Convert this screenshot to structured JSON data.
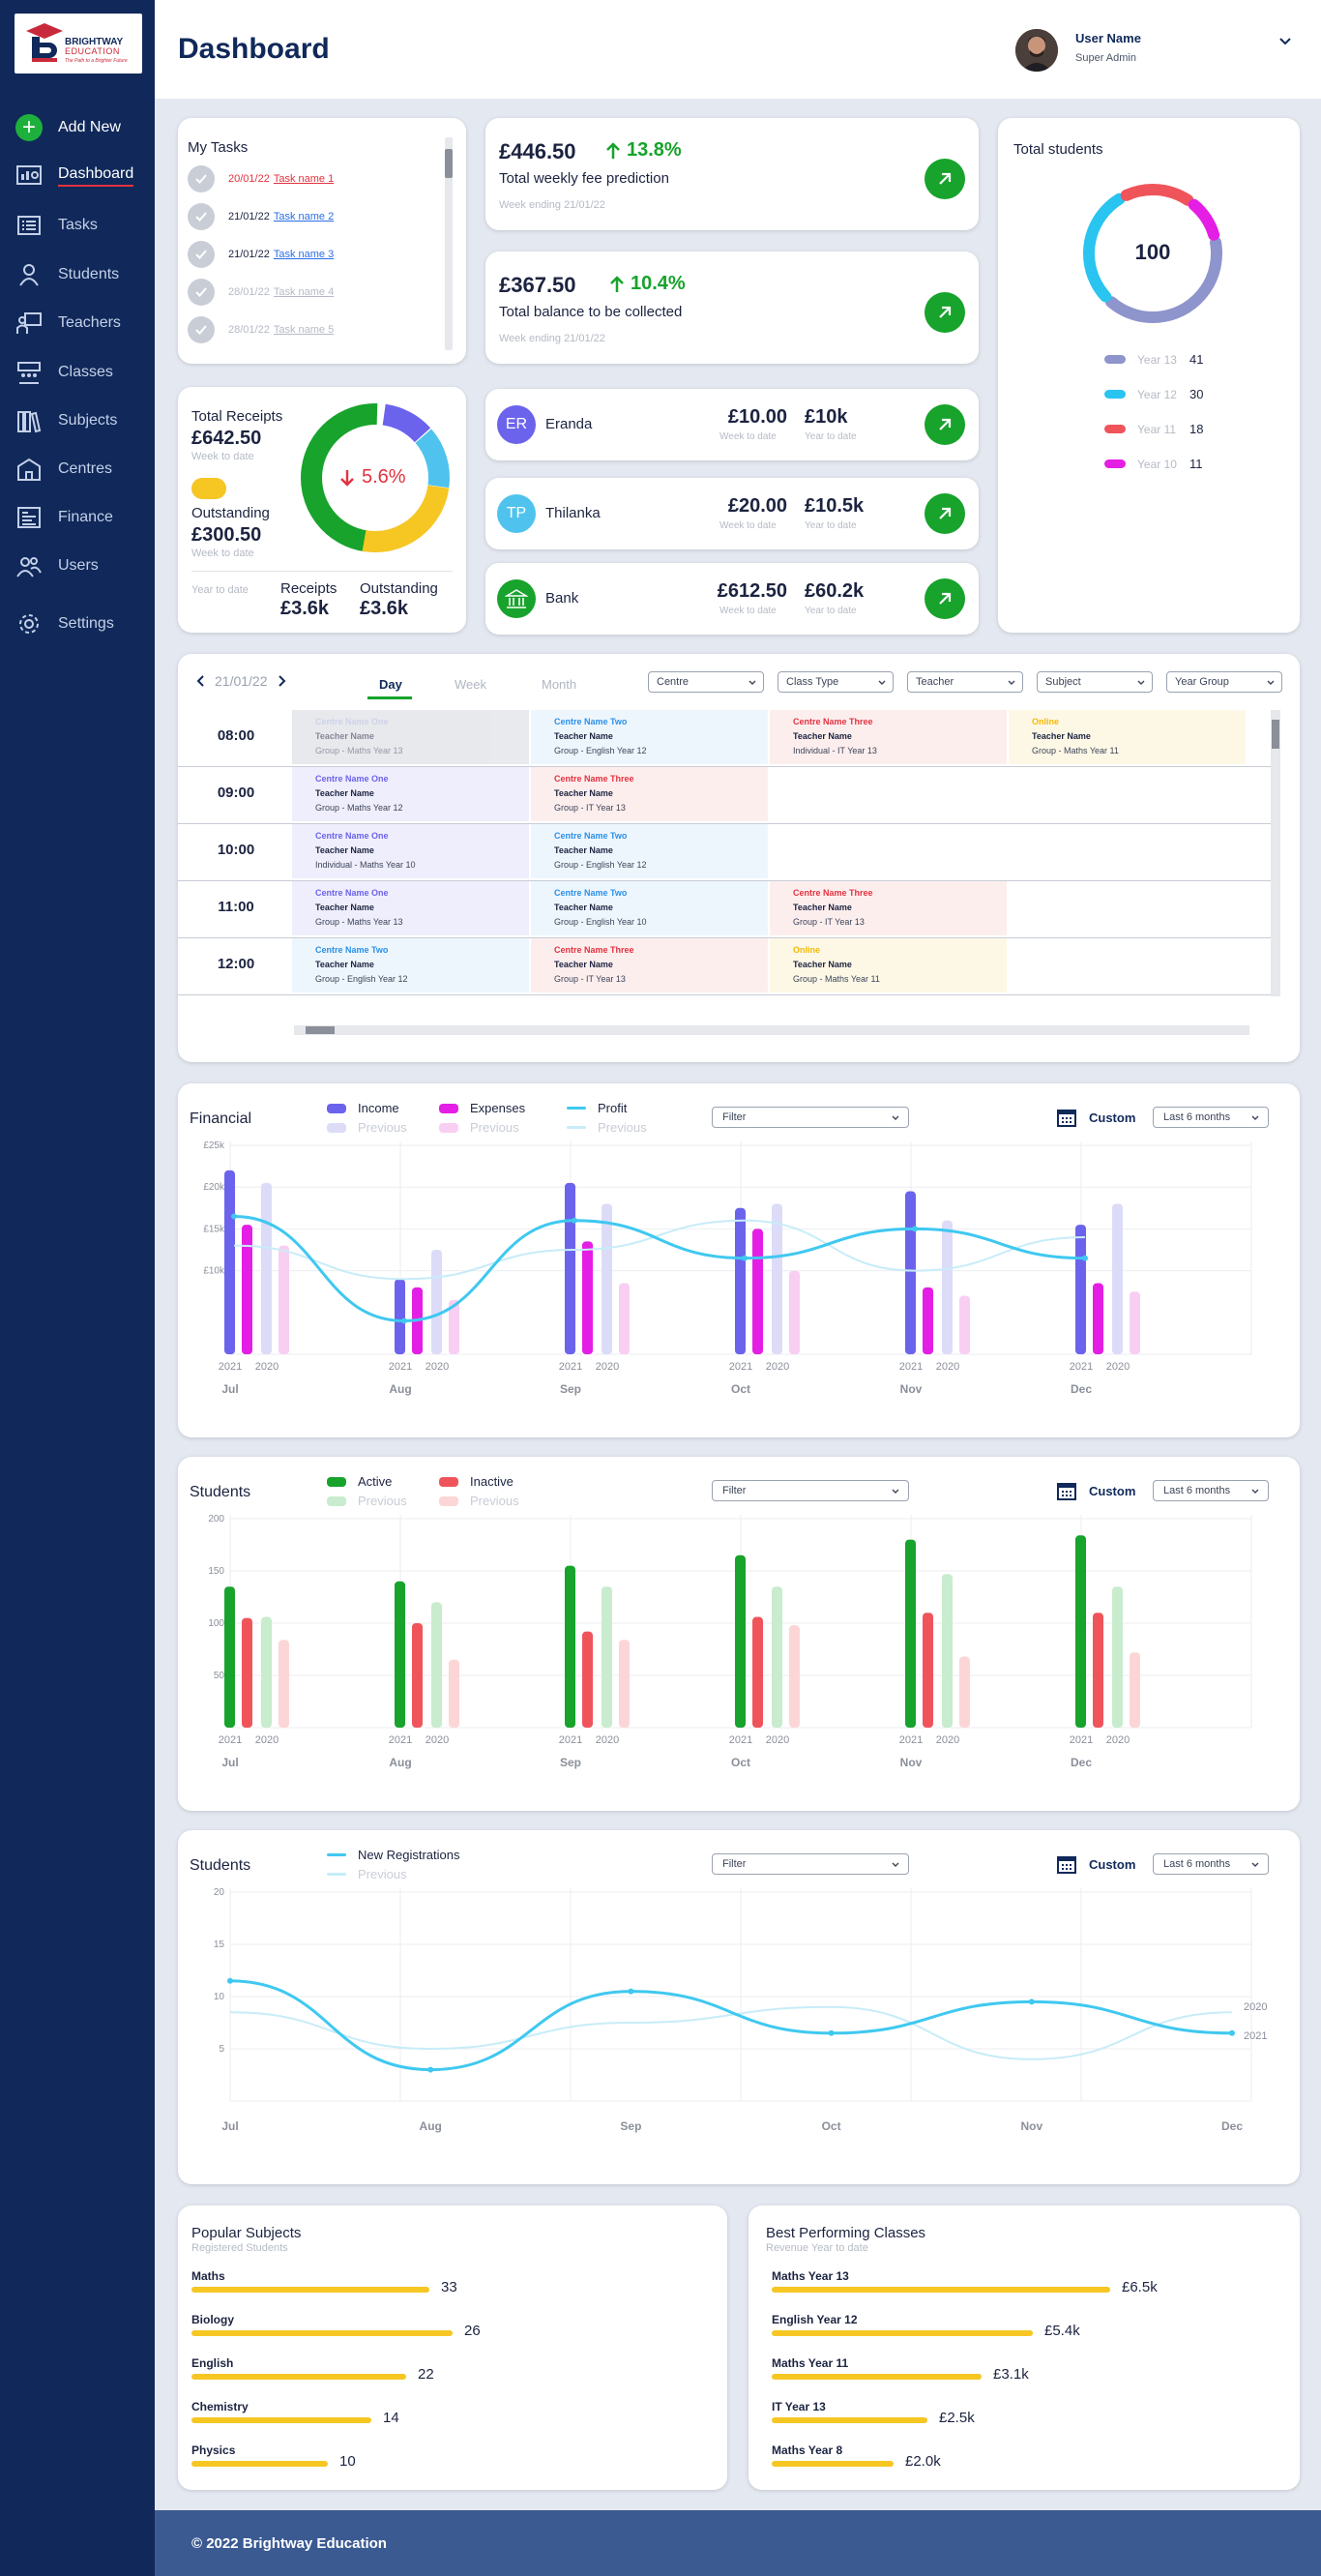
{
  "brand": {
    "name": "BRIGHTWAY",
    "sub": "EDUCATION",
    "tagline": "The Path to a Brighter Future",
    "color": "#10295a",
    "accent": "#c92a3b"
  },
  "header": {
    "title": "Dashboard",
    "user_name": "User Name",
    "user_role": "Super Admin"
  },
  "sidebar": {
    "items": [
      {
        "label": "Add New",
        "icon": "plus-icon"
      },
      {
        "label": "Dashboard",
        "icon": "dashboard-icon"
      },
      {
        "label": "Tasks",
        "icon": "list-icon"
      },
      {
        "label": "Students",
        "icon": "student-icon"
      },
      {
        "label": "Teachers",
        "icon": "teacher-icon"
      },
      {
        "label": "Classes",
        "icon": "classroom-icon"
      },
      {
        "label": "Subjects",
        "icon": "books-icon"
      },
      {
        "label": "Centres",
        "icon": "building-icon"
      },
      {
        "label": "Finance",
        "icon": "finance-icon"
      },
      {
        "label": "Users",
        "icon": "users-icon"
      },
      {
        "label": "Settings",
        "icon": "gear-icon"
      }
    ]
  },
  "tasks": {
    "title": "My Tasks",
    "items": [
      {
        "date": "20/01/22",
        "name": "Task name 1",
        "state": "overdue"
      },
      {
        "date": "21/01/22",
        "name": "Task name 2",
        "state": "due"
      },
      {
        "date": "21/01/22",
        "name": "Task name 3",
        "state": "due"
      },
      {
        "date": "28/01/22",
        "name": "Task name 4",
        "state": "future"
      },
      {
        "date": "28/01/22",
        "name": "Task name 5",
        "state": "future"
      }
    ]
  },
  "fee_prediction": {
    "amount": "£446.50",
    "pct": "13.8%",
    "label": "Total weekly fee prediction",
    "note": "Week ending 21/01/22"
  },
  "balance": {
    "amount": "£367.50",
    "pct": "10.4%",
    "label": "Total balance to be collected",
    "note": "Week ending 21/01/22"
  },
  "receipts": {
    "title": "Total Receipts",
    "amount": "£642.50",
    "week_note": "Week to date",
    "out_title": "Outstanding",
    "out_amount": "£300.50",
    "out_note": "Week to date",
    "pct": "5.6%",
    "ytd_label": "Year to date",
    "r_label": "Receipts",
    "r_value": "£3.6k",
    "o_label": "Outstanding",
    "o_value": "£3.6k"
  },
  "people": [
    {
      "initials": "ER",
      "name": "Eranda",
      "week": "£10.00",
      "year": "£10k",
      "color": "#6c63ec"
    },
    {
      "initials": "TP",
      "name": "Thilanka",
      "week": "£20.00",
      "year": "£10.5k",
      "color": "#4fc3ee"
    },
    {
      "initials": "",
      "name": "Bank",
      "week": "£612.50",
      "year": "£60.2k",
      "color": "#17a32c"
    }
  ],
  "people_labels": {
    "week": "Week to date",
    "year": "Year to date"
  },
  "total_students": {
    "title": "Total students",
    "total": "100",
    "legend": [
      {
        "name": "Year 13",
        "value": "41",
        "color": "#8e94cc"
      },
      {
        "name": "Year 12",
        "value": "30",
        "color": "#29c4f0"
      },
      {
        "name": "Year 11",
        "value": "18",
        "color": "#f0545b"
      },
      {
        "name": "Year 10",
        "value": "11",
        "color": "#e41ee4"
      }
    ]
  },
  "timetable": {
    "date": "21/01/22",
    "tabs": [
      "Day",
      "Week",
      "Month"
    ],
    "filters": [
      "Centre",
      "Class Type",
      "Teacher",
      "Subject",
      "Year Group"
    ],
    "times": [
      "08:00",
      "09:00",
      "10:00",
      "11:00",
      "12:00"
    ],
    "slots": [
      [
        {
          "c": "Centre Name One",
          "t": "Teacher Name",
          "g": "Group - Maths Year 13",
          "k": "past"
        },
        {
          "c": "Centre Name Two",
          "t": "Teacher Name",
          "g": "Group - English Year 12",
          "k": "two"
        },
        {
          "c": "Centre Name Three",
          "t": "Teacher Name",
          "g": "Individual - IT Year 13",
          "k": "three"
        },
        {
          "c": "Online",
          "t": "Teacher Name",
          "g": "Group - Maths Year 11",
          "k": "online"
        }
      ],
      [
        {
          "c": "Centre Name One",
          "t": "Teacher Name",
          "g": "Group - Maths Year 12",
          "k": "one"
        },
        {
          "c": "Centre Name Three",
          "t": "Teacher Name",
          "g": "Group - IT Year 13",
          "k": "three"
        }
      ],
      [
        {
          "c": "Centre Name One",
          "t": "Teacher Name",
          "g": "Individual - Maths Year 10",
          "k": "one"
        },
        {
          "c": "Centre Name Two",
          "t": "Teacher Name",
          "g": "Group - English Year 12",
          "k": "two"
        }
      ],
      [
        {
          "c": "Centre Name One",
          "t": "Teacher Name",
          "g": "Group - Maths Year 13",
          "k": "one"
        },
        {
          "c": "Centre Name Two",
          "t": "Teacher Name",
          "g": "Group - English Year 10",
          "k": "two"
        },
        {
          "c": "Centre Name Three",
          "t": "Teacher Name",
          "g": "Group - IT Year 13",
          "k": "three"
        }
      ],
      [
        {
          "c": "Centre Name Two",
          "t": "Teacher Name",
          "g": "Group - English Year 12",
          "k": "two"
        },
        {
          "c": "Centre Name Three",
          "t": "Teacher Name",
          "g": "Group - IT Year 13",
          "k": "three"
        },
        {
          "c": "Online",
          "t": "Teacher Name",
          "g": "Group - Maths Year 11",
          "k": "online"
        }
      ]
    ]
  },
  "controls": {
    "filter": "Filter",
    "custom": "Custom",
    "period": "Last 6 months",
    "previous": "Previous"
  },
  "chart_data": [
    {
      "type": "bar",
      "title": "Financial",
      "categories": [
        "Jul",
        "Aug",
        "Sep",
        "Oct",
        "Nov",
        "Dec"
      ],
      "year_labels": [
        "2021",
        "2020"
      ],
      "ylim": [
        0,
        25
      ],
      "yticks": [
        "£25k",
        "£20k",
        "£15k",
        "£10k"
      ],
      "ytick_values": [
        25,
        20,
        15,
        10
      ],
      "series": [
        {
          "name": "Income",
          "values": [
            22,
            9,
            20.5,
            17.5,
            19.5,
            15.5
          ],
          "color": "#6c63ec"
        },
        {
          "name": "Expenses",
          "values": [
            15.5,
            8,
            13.5,
            15,
            8,
            8.5
          ],
          "color": "#e41ee4"
        },
        {
          "name": "Previous",
          "values": [
            20.5,
            12.5,
            18,
            18,
            16,
            18
          ],
          "color": "#dcdcf8"
        },
        {
          "name": "Previous",
          "values": [
            13,
            6.5,
            8.5,
            10,
            7,
            7.5
          ],
          "color": "#f8cff2"
        }
      ],
      "lines": [
        {
          "name": "Profit",
          "values": [
            16.5,
            4,
            16,
            11.5,
            15,
            11.5
          ],
          "color": "#3fc8f0"
        },
        {
          "name": "Previous",
          "values": [
            13,
            9,
            12.5,
            16,
            10,
            14
          ],
          "color": "#c8ecf8"
        }
      ]
    },
    {
      "type": "bar",
      "title": "Students",
      "categories": [
        "Jul",
        "Aug",
        "Sep",
        "Oct",
        "Nov",
        "Dec"
      ],
      "year_labels": [
        "2021",
        "2020"
      ],
      "ylim": [
        0,
        200
      ],
      "yticks": [
        "200",
        "150",
        "100",
        "50"
      ],
      "ytick_values": [
        200,
        150,
        100,
        50
      ],
      "series": [
        {
          "name": "Active",
          "values": [
            135,
            140,
            155,
            165,
            180,
            184
          ],
          "color": "#17a32c"
        },
        {
          "name": "Inactive",
          "values": [
            105,
            100,
            92,
            106,
            110,
            110
          ],
          "color": "#f0545b"
        },
        {
          "name": "Previous",
          "values": [
            106,
            120,
            135,
            135,
            147,
            135
          ],
          "color": "#c8eccd"
        },
        {
          "name": "Previous",
          "values": [
            84,
            65,
            84,
            98,
            68,
            72
          ],
          "color": "#fcd6d6"
        }
      ]
    },
    {
      "type": "line",
      "title": "Students",
      "categories": [
        "Jul",
        "Aug",
        "Sep",
        "Oct",
        "Nov",
        "Dec"
      ],
      "ylim": [
        0,
        20
      ],
      "yticks": [
        "20",
        "15",
        "10",
        "5"
      ],
      "ytick_values": [
        20,
        15,
        10,
        5
      ],
      "series": [
        {
          "name": "New Registrations",
          "values": [
            11.5,
            3,
            10.5,
            6.5,
            9.5,
            6.5
          ],
          "color": "#3fc8f0",
          "end_label": "2021"
        },
        {
          "name": "Previous",
          "values": [
            8.5,
            5,
            7.5,
            9,
            4,
            8.5
          ],
          "color": "#c8ecf8",
          "end_label": "2020"
        }
      ]
    }
  ],
  "popular_subjects": {
    "title": "Popular Subjects",
    "sub": "Registered Students",
    "items": [
      {
        "name": "Maths",
        "value": "33",
        "frac": 0.82
      },
      {
        "name": "Biology",
        "value": "26",
        "frac": 0.9
      },
      {
        "name": "English",
        "value": "22",
        "frac": 0.74
      },
      {
        "name": "Chemistry",
        "value": "14",
        "frac": 0.62
      },
      {
        "name": "Physics",
        "value": "10",
        "frac": 0.47
      }
    ]
  },
  "best_classes": {
    "title": "Best Performing Classes",
    "sub": "Revenue Year to date",
    "items": [
      {
        "name": "Maths Year 13",
        "value": "£6.5k",
        "frac": 1.0
      },
      {
        "name": "English Year 12",
        "value": "£5.4k",
        "frac": 0.77
      },
      {
        "name": "Maths Year 11",
        "value": "£3.1k",
        "frac": 0.62
      },
      {
        "name": "IT Year 13",
        "value": "£2.5k",
        "frac": 0.46
      },
      {
        "name": "Maths Year 8",
        "value": "£2.0k",
        "frac": 0.36
      }
    ]
  },
  "footer": {
    "text": "© 2022 Brightway Education"
  }
}
